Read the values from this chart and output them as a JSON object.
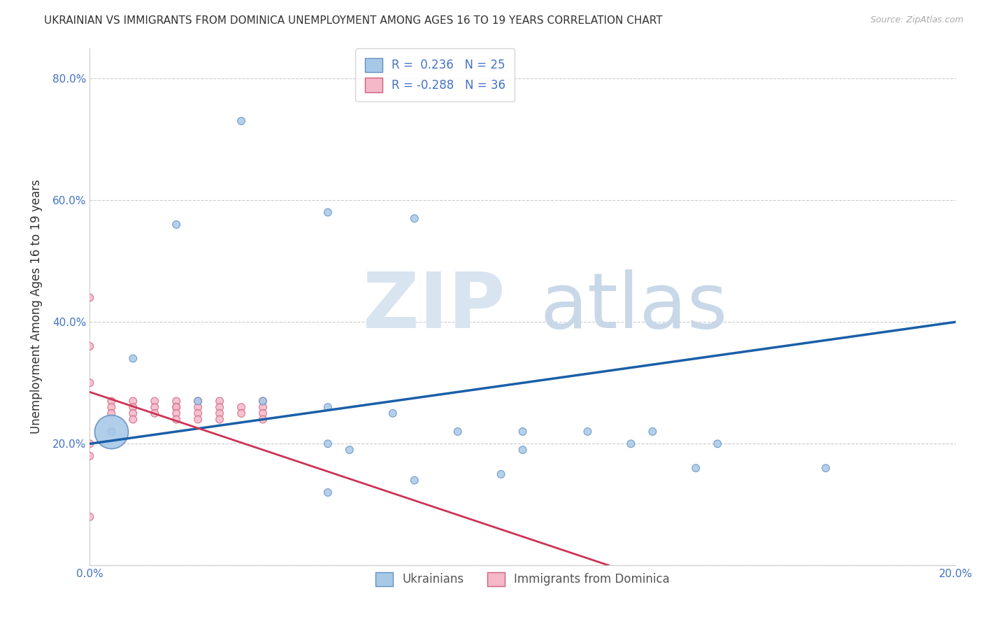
{
  "title": "UKRAINIAN VS IMMIGRANTS FROM DOMINICA UNEMPLOYMENT AMONG AGES 16 TO 19 YEARS CORRELATION CHART",
  "source": "Source: ZipAtlas.com",
  "ylabel": "Unemployment Among Ages 16 to 19 years",
  "x_min": 0.0,
  "x_max": 0.2,
  "y_min": 0.0,
  "y_max": 0.85,
  "legend_label1": "R =  0.236   N = 25",
  "legend_label2": "R = -0.288   N = 36",
  "legend_bottom_label1": "Ukrainians",
  "legend_bottom_label2": "Immigrants from Dominica",
  "blue_color": "#a8c8e8",
  "pink_color": "#f4b8c8",
  "blue_line_color": "#1a5fa8",
  "pink_line_color": "#e8708a",
  "blue_scatter_x": [
    0.035,
    0.055,
    0.075,
    0.02,
    0.01,
    0.025,
    0.04,
    0.055,
    0.07,
    0.085,
    0.1,
    0.115,
    0.13,
    0.055,
    0.125,
    0.145,
    0.06,
    0.1,
    0.14,
    0.17,
    0.095,
    0.075,
    0.055,
    0.005,
    0.005
  ],
  "blue_scatter_y": [
    0.73,
    0.58,
    0.57,
    0.56,
    0.34,
    0.27,
    0.27,
    0.26,
    0.25,
    0.22,
    0.22,
    0.22,
    0.22,
    0.2,
    0.2,
    0.2,
    0.19,
    0.19,
    0.16,
    0.16,
    0.15,
    0.14,
    0.12,
    0.22,
    0.22
  ],
  "blue_scatter_size": [
    60,
    60,
    60,
    60,
    60,
    60,
    60,
    60,
    60,
    60,
    60,
    60,
    60,
    60,
    60,
    60,
    60,
    60,
    60,
    60,
    60,
    60,
    60,
    1200,
    60
  ],
  "pink_scatter_x": [
    0.0,
    0.0,
    0.0,
    0.0,
    0.005,
    0.005,
    0.005,
    0.01,
    0.01,
    0.01,
    0.01,
    0.015,
    0.015,
    0.015,
    0.02,
    0.02,
    0.02,
    0.02,
    0.02,
    0.025,
    0.025,
    0.025,
    0.025,
    0.03,
    0.03,
    0.03,
    0.03,
    0.035,
    0.035,
    0.04,
    0.04,
    0.04,
    0.04,
    0.005,
    0.0,
    0.0
  ],
  "pink_scatter_y": [
    0.44,
    0.36,
    0.3,
    0.08,
    0.27,
    0.26,
    0.25,
    0.27,
    0.26,
    0.25,
    0.24,
    0.27,
    0.26,
    0.25,
    0.27,
    0.26,
    0.26,
    0.25,
    0.24,
    0.27,
    0.26,
    0.25,
    0.24,
    0.27,
    0.26,
    0.25,
    0.24,
    0.26,
    0.25,
    0.27,
    0.26,
    0.25,
    0.24,
    0.22,
    0.2,
    0.18
  ],
  "pink_scatter_size": [
    60,
    60,
    60,
    60,
    60,
    60,
    60,
    60,
    60,
    60,
    60,
    60,
    60,
    60,
    60,
    60,
    60,
    60,
    60,
    60,
    60,
    60,
    60,
    60,
    60,
    60,
    60,
    60,
    60,
    60,
    60,
    60,
    60,
    60,
    60,
    60
  ]
}
